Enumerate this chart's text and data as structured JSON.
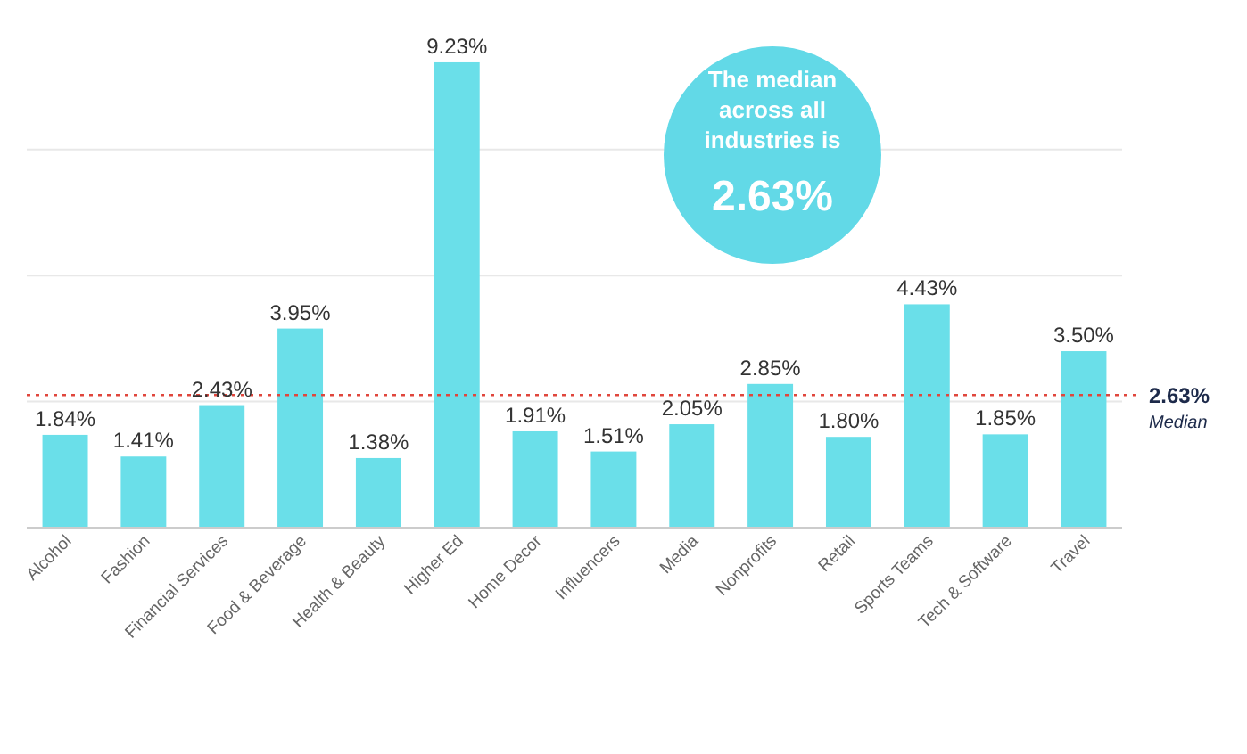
{
  "chart_data": {
    "type": "bar",
    "categories": [
      "Alcohol",
      "Fashion",
      "Financial Services",
      "Food & Beverage",
      "Health & Beauty",
      "Higher Ed",
      "Home Decor",
      "Influencers",
      "Media",
      "Nonprofits",
      "Retail",
      "Sports Teams",
      "Tech & Software",
      "Travel"
    ],
    "values": [
      1.84,
      1.41,
      2.43,
      3.95,
      1.38,
      9.23,
      1.91,
      1.51,
      2.05,
      2.85,
      1.8,
      4.43,
      1.85,
      3.5
    ],
    "value_labels": [
      "1.84%",
      "1.41%",
      "2.43%",
      "3.95%",
      "1.38%",
      "9.23%",
      "1.91%",
      "1.51%",
      "2.05%",
      "2.85%",
      "1.80%",
      "4.43%",
      "1.85%",
      "3.50%"
    ],
    "color": "#6adfe9",
    "ylim": [
      0,
      9.3
    ],
    "yticks": [
      {
        "value": 0,
        "label": null
      },
      {
        "value": 2.5,
        "label": null
      },
      {
        "value": 5,
        "label": null
      },
      {
        "value": 7.5,
        "label": null
      }
    ],
    "grid": "y",
    "tick_labels": "x",
    "ref_lines": [
      {
        "axis": "y",
        "value": 2.63,
        "label": "2.63% Median",
        "color": "#e0463c",
        "line_style": "dotted"
      }
    ],
    "annotations": [
      "The median across all industries is 2.63%"
    ]
  }
}
